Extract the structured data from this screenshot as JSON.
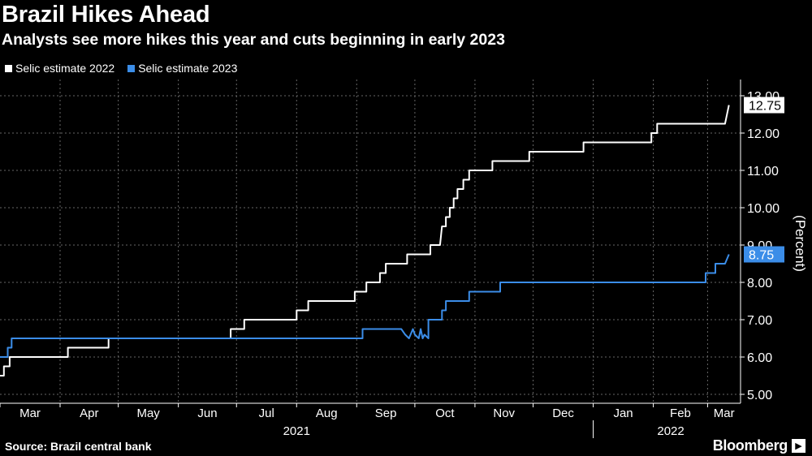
{
  "header": {
    "title": "Brazil Hikes Ahead",
    "subtitle": "Analysts see more hikes this year and cuts beginning in early 2023"
  },
  "footer": {
    "source": "Source: Brazil central bank",
    "brand": "Bloomberg"
  },
  "colors": {
    "background": "#000000",
    "series_2022": "#ffffff",
    "series_2023": "#3b8de8",
    "grid": "#666666"
  },
  "chart_data": {
    "type": "line",
    "title": "Brazil Hikes Ahead",
    "subtitle": "Analysts see more hikes this year and cuts beginning in early 2023",
    "ylabel": "(Percent)",
    "ylim": [
      4.8,
      13.3
    ],
    "yticks": [
      "5.00",
      "6.00",
      "7.00",
      "8.00",
      "9.00",
      "10.00",
      "11.00",
      "12.00",
      "13.00"
    ],
    "xlim": [
      "2021-03-01",
      "2022-03-18"
    ],
    "month_labels": [
      {
        "date": "2021-03-01",
        "label": "Mar"
      },
      {
        "date": "2021-04-01",
        "label": "Apr"
      },
      {
        "date": "2021-05-01",
        "label": "May"
      },
      {
        "date": "2021-06-01",
        "label": "Jun"
      },
      {
        "date": "2021-07-01",
        "label": "Jul"
      },
      {
        "date": "2021-08-01",
        "label": "Aug"
      },
      {
        "date": "2021-09-01",
        "label": "Sep"
      },
      {
        "date": "2021-10-01",
        "label": "Oct"
      },
      {
        "date": "2021-11-01",
        "label": "Nov"
      },
      {
        "date": "2021-12-01",
        "label": "Dec"
      },
      {
        "date": "2022-01-01",
        "label": "Jan"
      },
      {
        "date": "2022-02-01",
        "label": "Feb"
      },
      {
        "date": "2022-03-01",
        "label": "Mar"
      }
    ],
    "year_labels": [
      {
        "date": "2021-08-01",
        "label": "2021"
      },
      {
        "date": "2022-02-10",
        "label": "2022"
      }
    ],
    "grid": true,
    "legend_position": "top-left",
    "series": [
      {
        "name": "Selic estimate 2022",
        "color": "#ffffff",
        "last_value_label": "12.75",
        "points": [
          [
            "2021-03-01",
            5.5
          ],
          [
            "2021-03-03",
            5.5
          ],
          [
            "2021-03-03",
            5.75
          ],
          [
            "2021-03-06",
            5.75
          ],
          [
            "2021-03-06",
            6.0
          ],
          [
            "2021-04-05",
            6.0
          ],
          [
            "2021-04-05",
            6.25
          ],
          [
            "2021-04-26",
            6.25
          ],
          [
            "2021-04-26",
            6.5
          ],
          [
            "2021-06-28",
            6.5
          ],
          [
            "2021-06-28",
            6.75
          ],
          [
            "2021-07-05",
            6.75
          ],
          [
            "2021-07-05",
            7.0
          ],
          [
            "2021-08-01",
            7.0
          ],
          [
            "2021-08-01",
            7.25
          ],
          [
            "2021-08-07",
            7.25
          ],
          [
            "2021-08-07",
            7.5
          ],
          [
            "2021-08-31",
            7.5
          ],
          [
            "2021-08-31",
            7.75
          ],
          [
            "2021-09-06",
            7.75
          ],
          [
            "2021-09-06",
            8.0
          ],
          [
            "2021-09-13",
            8.0
          ],
          [
            "2021-09-13",
            8.25
          ],
          [
            "2021-09-16",
            8.25
          ],
          [
            "2021-09-16",
            8.5
          ],
          [
            "2021-09-27",
            8.5
          ],
          [
            "2021-09-27",
            8.75
          ],
          [
            "2021-10-09",
            8.75
          ],
          [
            "2021-10-09",
            9.0
          ],
          [
            "2021-10-14",
            9.0
          ],
          [
            "2021-10-15",
            9.5
          ],
          [
            "2021-10-17",
            9.5
          ],
          [
            "2021-10-17",
            9.75
          ],
          [
            "2021-10-19",
            9.75
          ],
          [
            "2021-10-19",
            10.0
          ],
          [
            "2021-10-21",
            10.0
          ],
          [
            "2021-10-21",
            10.25
          ],
          [
            "2021-10-23",
            10.25
          ],
          [
            "2021-10-23",
            10.5
          ],
          [
            "2021-10-26",
            10.5
          ],
          [
            "2021-10-26",
            10.75
          ],
          [
            "2021-10-29",
            10.75
          ],
          [
            "2021-10-29",
            11.0
          ],
          [
            "2021-11-10",
            11.0
          ],
          [
            "2021-11-10",
            11.25
          ],
          [
            "2021-11-29",
            11.25
          ],
          [
            "2021-11-29",
            11.5
          ],
          [
            "2021-12-27",
            11.5
          ],
          [
            "2021-12-27",
            11.75
          ],
          [
            "2022-01-31",
            11.75
          ],
          [
            "2022-01-31",
            12.0
          ],
          [
            "2022-02-03",
            12.0
          ],
          [
            "2022-02-03",
            12.25
          ],
          [
            "2022-03-10",
            12.25
          ],
          [
            "2022-03-12",
            12.75
          ]
        ]
      },
      {
        "name": "Selic estimate 2023",
        "color": "#3b8de8",
        "last_value_label": "8.75",
        "points": [
          [
            "2021-03-01",
            6.0
          ],
          [
            "2021-03-05",
            6.0
          ],
          [
            "2021-03-05",
            6.25
          ],
          [
            "2021-03-07",
            6.25
          ],
          [
            "2021-03-07",
            6.5
          ],
          [
            "2021-09-04",
            6.5
          ],
          [
            "2021-09-04",
            6.75
          ],
          [
            "2021-09-24",
            6.75
          ],
          [
            "2021-09-26",
            6.6
          ],
          [
            "2021-09-28",
            6.5
          ],
          [
            "2021-09-30",
            6.75
          ],
          [
            "2021-10-01",
            6.6
          ],
          [
            "2021-10-03",
            6.5
          ],
          [
            "2021-10-04",
            6.75
          ],
          [
            "2021-10-05",
            6.5
          ],
          [
            "2021-10-06",
            6.6
          ],
          [
            "2021-10-08",
            6.5
          ],
          [
            "2021-10-08",
            7.0
          ],
          [
            "2021-10-15",
            7.0
          ],
          [
            "2021-10-15",
            7.25
          ],
          [
            "2021-10-17",
            7.25
          ],
          [
            "2021-10-17",
            7.5
          ],
          [
            "2021-10-29",
            7.5
          ],
          [
            "2021-10-29",
            7.75
          ],
          [
            "2021-11-14",
            7.75
          ],
          [
            "2021-11-14",
            8.0
          ],
          [
            "2022-02-28",
            8.0
          ],
          [
            "2022-02-28",
            8.25
          ],
          [
            "2022-03-05",
            8.25
          ],
          [
            "2022-03-05",
            8.5
          ],
          [
            "2022-03-10",
            8.5
          ],
          [
            "2022-03-12",
            8.75
          ]
        ]
      }
    ]
  }
}
